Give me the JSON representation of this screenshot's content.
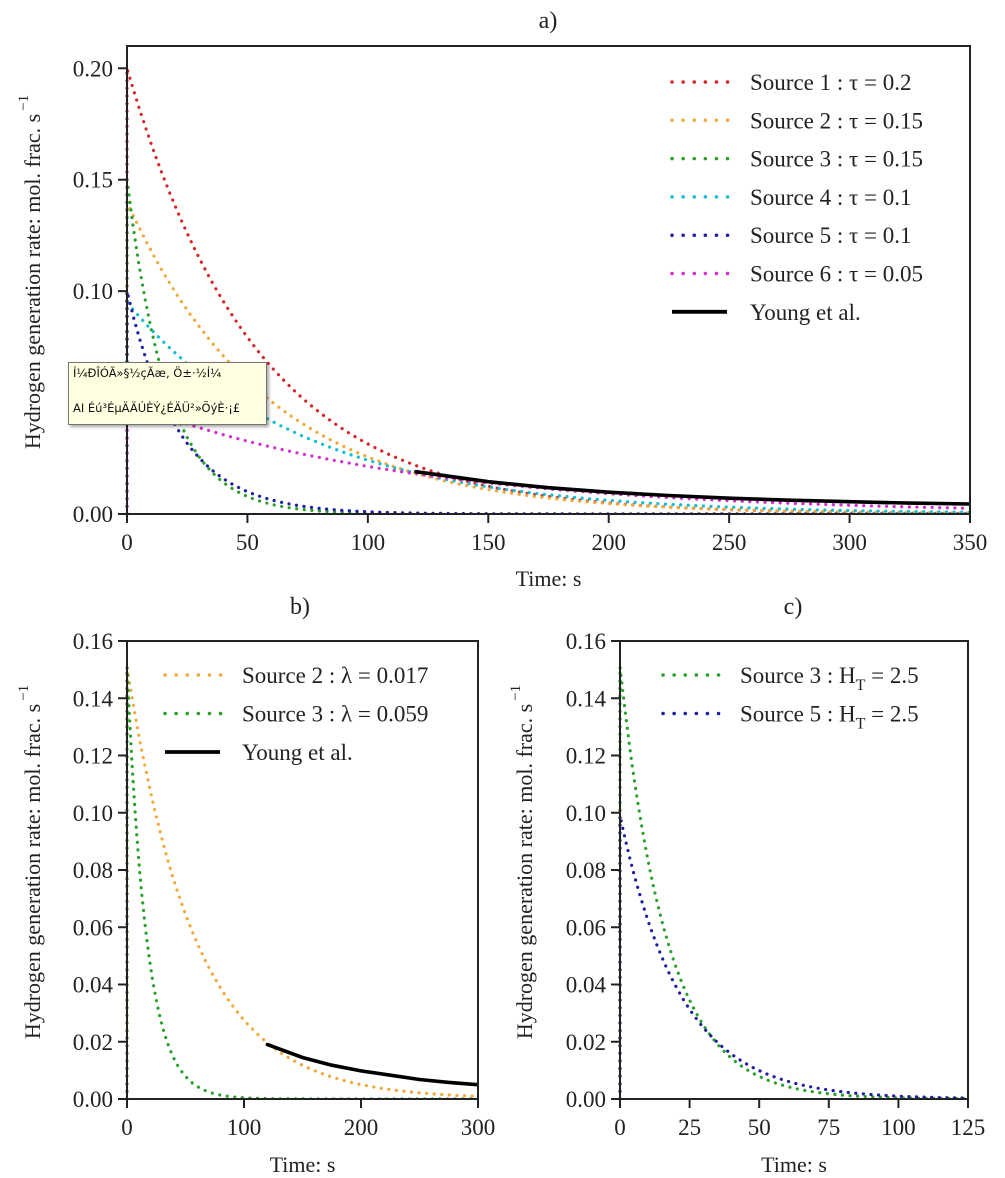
{
  "chart_data": [
    {
      "id": "a",
      "type": "line",
      "title": "a)",
      "xlabel": "Time: s",
      "ylabel": "Hydrogen generation rate: mol. frac. s",
      "ylabel_superscript": "−1",
      "xlim": [
        0,
        350
      ],
      "ylim": [
        0,
        0.21
      ],
      "xticks": [
        "0",
        "50",
        "100",
        "150",
        "200",
        "250",
        "300",
        "350"
      ],
      "xtick_values": [
        0,
        50,
        100,
        150,
        200,
        250,
        300,
        350
      ],
      "yticks": [
        "0.00",
        "0.05",
        "0.10",
        "0.15",
        "0.20"
      ],
      "ytick_values": [
        0,
        0.05,
        0.1,
        0.15,
        0.2
      ],
      "grid": false,
      "legend_position": "top-right",
      "series": [
        {
          "name": "Source 1 : τ = 0.2",
          "style": "dotted",
          "color": "#d62728",
          "peak": 0.2,
          "decay_rate": 0.0185,
          "t_end": 350
        },
        {
          "name": "Source 2 : τ = 0.15",
          "style": "dotted",
          "color": "#f2a93b",
          "peak": 0.14,
          "decay_rate": 0.017,
          "t_end": 350
        },
        {
          "name": "Source 3 : τ = 0.15",
          "style": "dotted",
          "color": "#2ca02c",
          "peak": 0.15,
          "decay_rate": 0.059,
          "t_end": 350
        },
        {
          "name": "Source 4 : τ = 0.1",
          "style": "dotted",
          "color": "#17becf",
          "peak": 0.095,
          "decay_rate": 0.0137,
          "t_end": 350
        },
        {
          "name": "Source 5 : τ = 0.1",
          "style": "dotted",
          "color": "#1f1f9f",
          "peak": 0.1,
          "decay_rate": 0.046,
          "t_end": 350
        },
        {
          "name": "Source 6 : τ = 0.05",
          "style": "dotted",
          "color": "#d62fd0",
          "peak": 0.05,
          "decay_rate": 0.0085,
          "t_end": 350
        },
        {
          "name": "Young et al.",
          "style": "solid",
          "color": "#000000",
          "x": [
            120,
            150,
            175,
            200,
            225,
            250,
            275,
            300,
            325,
            350
          ],
          "y": [
            0.019,
            0.0145,
            0.0118,
            0.0098,
            0.0083,
            0.0071,
            0.0062,
            0.0055,
            0.0049,
            0.0045
          ]
        }
      ]
    },
    {
      "id": "b",
      "type": "line",
      "title": "b)",
      "xlabel": "Time: s",
      "ylabel": "Hydrogen generation rate: mol. frac. s",
      "ylabel_superscript": "−1",
      "xlim": [
        0,
        300
      ],
      "ylim": [
        0,
        0.16
      ],
      "xticks": [
        "0",
        "100",
        "200",
        "300"
      ],
      "xtick_values": [
        0,
        100,
        200,
        300
      ],
      "yticks": [
        "0.00",
        "0.02",
        "0.04",
        "0.06",
        "0.08",
        "0.10",
        "0.12",
        "0.14",
        "0.16"
      ],
      "ytick_values": [
        0,
        0.02,
        0.04,
        0.06,
        0.08,
        0.1,
        0.12,
        0.14,
        0.16
      ],
      "grid": false,
      "legend_position": "top-right",
      "series": [
        {
          "name": "Source 2 : λ = 0.017",
          "style": "dotted",
          "color": "#f2a93b",
          "peak": 0.151,
          "decay_rate": 0.017,
          "t_end": 300
        },
        {
          "name": "Source 3 : λ = 0.059",
          "style": "dotted",
          "color": "#2ca02c",
          "peak": 0.151,
          "decay_rate": 0.059,
          "t_end": 300
        },
        {
          "name": "Young et al.",
          "style": "solid",
          "color": "#000000",
          "x": [
            120,
            150,
            175,
            200,
            225,
            250,
            275,
            300
          ],
          "y": [
            0.019,
            0.0145,
            0.0118,
            0.0098,
            0.0083,
            0.0068,
            0.0058,
            0.005
          ]
        }
      ]
    },
    {
      "id": "c",
      "type": "line",
      "title": "c)",
      "xlabel": "Time: s",
      "ylabel": "Hydrogen generation rate: mol. frac. s",
      "ylabel_superscript": "−1",
      "xlim": [
        0,
        125
      ],
      "ylim": [
        0,
        0.16
      ],
      "xticks": [
        "0",
        "25",
        "50",
        "75",
        "100",
        "125"
      ],
      "xtick_values": [
        0,
        25,
        50,
        75,
        100,
        125
      ],
      "yticks": [
        "0.00",
        "0.02",
        "0.04",
        "0.06",
        "0.08",
        "0.10",
        "0.12",
        "0.14",
        "0.16"
      ],
      "ytick_values": [
        0,
        0.02,
        0.04,
        0.06,
        0.08,
        0.1,
        0.12,
        0.14,
        0.16
      ],
      "grid": false,
      "legend_position": "top-right",
      "series": [
        {
          "name": "Source 3 : H_T = 2.5",
          "label_main": "Source 3 : H",
          "label_sub": "T",
          "label_tail": " = 2.5",
          "style": "dotted",
          "color": "#2ca02c",
          "peak": 0.151,
          "decay_rate": 0.059,
          "t_end": 125
        },
        {
          "name": "Source 5 : H_T = 2.5",
          "label_main": "Source 5 : H",
          "label_sub": "T",
          "label_tail": " = 2.5",
          "style": "dotted",
          "color": "#1f1f9f",
          "peak": 0.099,
          "decay_rate": 0.046,
          "t_end": 125
        }
      ]
    }
  ],
  "tooltip": {
    "line1": "Í¼ÐÎÓÃ»§½çÃæ, Ö±·½Í¼",
    "line2": "AI Éú³ÉµÄÄÚÈÝ¿ÉÄÜ²»ÕýÈ·¡£"
  }
}
